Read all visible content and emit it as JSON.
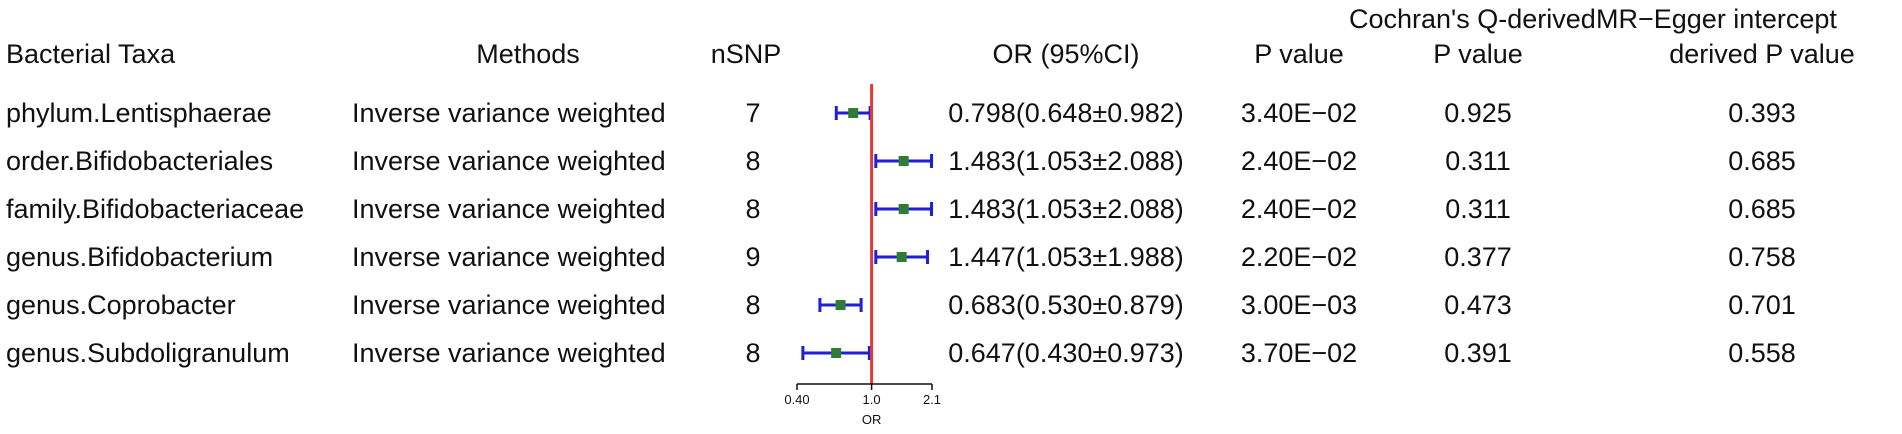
{
  "headers": {
    "group_q": "Cochran's Q-derived",
    "group_egger": "MR−Egger intercept",
    "taxa": "Bacterial Taxa",
    "methods": "Methods",
    "nsnp": "nSNP",
    "or": "OR (95%CI)",
    "p_value": "P value",
    "q_p_value": "P value",
    "egger_p_value": "derived P value"
  },
  "rows": [
    {
      "taxa": "phylum.Lentisphaerae",
      "method": "Inverse variance weighted",
      "nsnp": "7",
      "or_ci": "0.798(0.648±0.982)",
      "p": "3.40E−02",
      "q_p": "0.925",
      "egger_p": "0.393"
    },
    {
      "taxa": "order.Bifidobacteriales",
      "method": "Inverse variance weighted",
      "nsnp": "8",
      "or_ci": "1.483(1.053±2.088)",
      "p": "2.40E−02",
      "q_p": "0.311",
      "egger_p": "0.685"
    },
    {
      "taxa": "family.Bifidobacteriaceae",
      "method": "Inverse variance weighted",
      "nsnp": "8",
      "or_ci": "1.483(1.053±2.088)",
      "p": "2.40E−02",
      "q_p": "0.311",
      "egger_p": "0.685"
    },
    {
      "taxa": "genus.Bifidobacterium",
      "method": "Inverse variance weighted",
      "nsnp": "9",
      "or_ci": "1.447(1.053±1.988)",
      "p": "2.20E−02",
      "q_p": "0.377",
      "egger_p": "0.758"
    },
    {
      "taxa": "genus.Coprobacter",
      "method": "Inverse variance weighted",
      "nsnp": "8",
      "or_ci": "0.683(0.530±0.879)",
      "p": "3.00E−03",
      "q_p": "0.473",
      "egger_p": "0.701"
    },
    {
      "taxa": "genus.Subdoligranulum",
      "method": "Inverse variance weighted",
      "nsnp": "8",
      "or_ci": "0.647(0.430±0.973)",
      "p": "3.70E−02",
      "q_p": "0.391",
      "egger_p": "0.558"
    }
  ],
  "chart_data": {
    "type": "forest",
    "categories": [
      "phylum.Lentisphaerae",
      "order.Bifidobacteriales",
      "family.Bifidobacteriaceae",
      "genus.Bifidobacterium",
      "genus.Coprobacter",
      "genus.Subdoligranulum"
    ],
    "estimates": [
      0.798,
      1.483,
      1.483,
      1.447,
      0.683,
      0.647
    ],
    "ci_lower": [
      0.648,
      1.053,
      1.053,
      1.053,
      0.53,
      0.43
    ],
    "ci_upper": [
      0.982,
      2.088,
      2.088,
      1.988,
      0.879,
      0.973
    ],
    "reference_line": 1.0,
    "x_scale": "log",
    "xlim": [
      0.4,
      2.1
    ],
    "x_ticks": [
      0.4,
      1.0,
      2.1
    ],
    "x_tick_labels": [
      "0.40",
      "1.0",
      "2.1"
    ],
    "xlabel": "OR",
    "colors": {
      "point": "#2e7d32",
      "ci": "#1f1fd6",
      "reference": "#e53935",
      "axis": "#111111"
    }
  }
}
